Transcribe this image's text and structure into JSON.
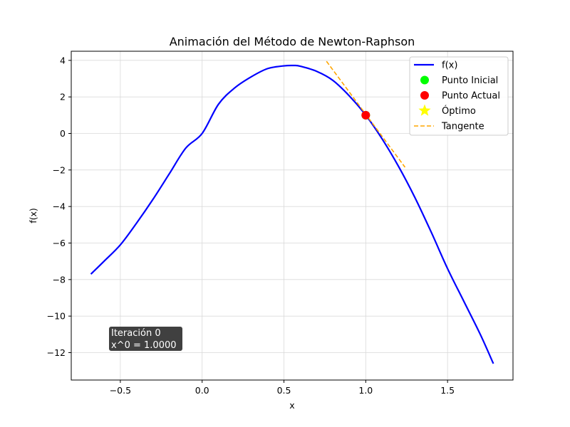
{
  "chart_data": {
    "type": "line",
    "title": "Animación del Método de Newton-Raphson",
    "xlabel": "x",
    "ylabel": "f(x)",
    "xlim": [
      -0.8,
      1.9
    ],
    "ylim": [
      -13.5,
      4.5
    ],
    "xticks": [
      -0.5,
      0.0,
      0.5,
      1.0,
      1.5
    ],
    "yticks": [
      -12,
      -10,
      -8,
      -6,
      -4,
      -2,
      0,
      2,
      4
    ],
    "grid": true,
    "legend_position": "top-right",
    "series": [
      {
        "name": "f(x)",
        "kind": "line",
        "color": "#0000ff",
        "x": [
          -0.68,
          -0.6,
          -0.5,
          -0.4,
          -0.3,
          -0.2,
          -0.1,
          0.0,
          0.1,
          0.2,
          0.3,
          0.4,
          0.5,
          0.56,
          0.6,
          0.7,
          0.8,
          0.9,
          1.0,
          1.1,
          1.2,
          1.3,
          1.4,
          1.5,
          1.6,
          1.7,
          1.78
        ],
        "y": [
          -7.7,
          -7.0,
          -6.1,
          -4.9,
          -3.6,
          -2.2,
          -0.8,
          0.0,
          1.6,
          2.5,
          3.1,
          3.55,
          3.7,
          3.72,
          3.68,
          3.4,
          2.9,
          2.05,
          1.0,
          -0.3,
          -1.8,
          -3.5,
          -5.4,
          -7.4,
          -9.2,
          -11.0,
          -12.6
        ]
      },
      {
        "name": "Punto Inicial",
        "kind": "scatter",
        "color": "#00ff00",
        "x": [
          1.0
        ],
        "y": [
          1.0
        ]
      },
      {
        "name": "Punto Actual",
        "kind": "scatter",
        "color": "#ff0000",
        "x": [
          1.0
        ],
        "y": [
          1.0
        ]
      },
      {
        "name": "Óptimo",
        "kind": "star",
        "color": "#ffff00",
        "x": [],
        "y": []
      },
      {
        "name": "Tangente",
        "kind": "dashed-line",
        "color": "#ffa500",
        "x": [
          0.76,
          1.24
        ],
        "y": [
          3.95,
          -1.85
        ]
      }
    ],
    "annotation": {
      "lines": [
        "Iteración 0",
        "x^0 = 1.0000"
      ],
      "background": "#404040"
    }
  }
}
